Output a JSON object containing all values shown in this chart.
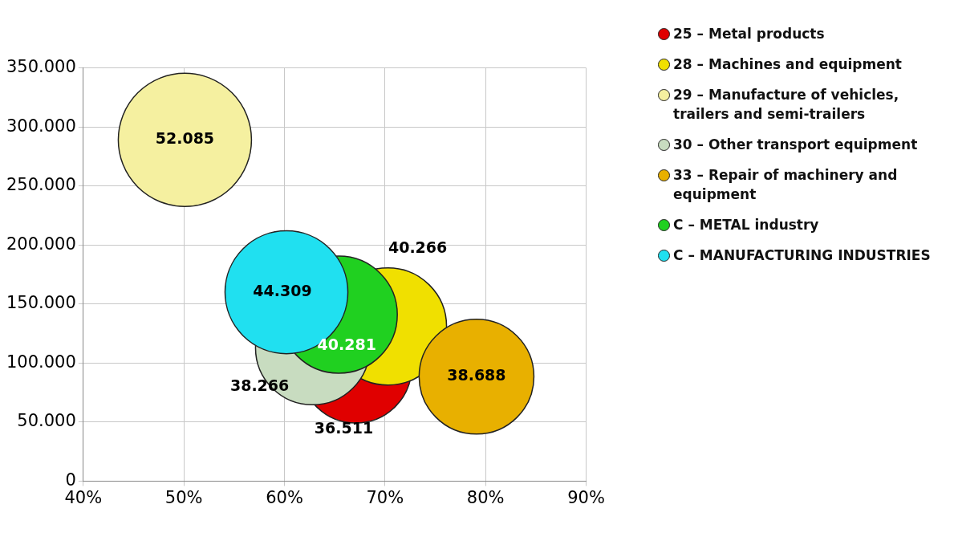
{
  "chart_data": {
    "type": "bubble",
    "legend": "right",
    "grid": true,
    "marker": "circle",
    "xlim": [
      0.4,
      0.9
    ],
    "xticks": [
      {
        "value": 0.4,
        "label": "40%"
      },
      {
        "value": 0.5,
        "label": "50%"
      },
      {
        "value": 0.6,
        "label": "60%"
      },
      {
        "value": 0.7,
        "label": "70%"
      },
      {
        "value": 0.8,
        "label": "80%"
      },
      {
        "value": 0.9,
        "label": "90%"
      }
    ],
    "ylim": [
      0,
      350000
    ],
    "yticks": [
      {
        "value": 0,
        "label": "0"
      },
      {
        "value": 50000,
        "label": "50.000"
      },
      {
        "value": 100000,
        "label": "100.000"
      },
      {
        "value": 150000,
        "label": "150.000"
      },
      {
        "value": 200000,
        "label": "200.000"
      },
      {
        "value": 250000,
        "label": "250.000"
      },
      {
        "value": 300000,
        "label": "300.000"
      },
      {
        "value": 350000,
        "label": "350.000"
      }
    ],
    "series": [
      {
        "name": "25 – Metal products",
        "color": "#e00000",
        "x": [
          0.671
        ],
        "values": [
          96500
        ],
        "sizes": [
          36511
        ],
        "value_labels": [
          "36.511"
        ]
      },
      {
        "name": "28 – Machines and equipment",
        "color": "#f0e000",
        "x": [
          0.703
        ],
        "values": [
          131000
        ],
        "sizes": [
          40266
        ],
        "value_labels": [
          "40.266"
        ]
      },
      {
        "name": "29 – Manufacture of vehicles, trailers and semi-trailers",
        "color": "#f5f0a0",
        "x": [
          0.501
        ],
        "values": [
          289000
        ],
        "sizes": [
          52085
        ],
        "value_labels": [
          "52.085"
        ]
      },
      {
        "name": "30 – Other transport equipment",
        "color": "#c8dcc0",
        "x": [
          0.628
        ],
        "values": [
          113000
        ],
        "sizes": [
          38266
        ],
        "value_labels": [
          "38.266"
        ]
      },
      {
        "name": "33 – Repair of machinery and equipment",
        "color": "#e8b000",
        "x": [
          0.791
        ],
        "values": [
          88500
        ],
        "sizes": [
          38688
        ],
        "value_labels": [
          "38.688"
        ]
      },
      {
        "name": "C – METAL industry",
        "color": "#20d020",
        "x": [
          0.654
        ],
        "values": [
          141000
        ],
        "sizes": [
          40281
        ],
        "value_labels": [
          "40.281"
        ]
      },
      {
        "name": "C – MANUFACTURING INDUSTRIES",
        "color": "#20e0f0",
        "x": [
          0.602
        ],
        "values": [
          160000
        ],
        "sizes": [
          44309
        ],
        "value_labels": [
          "44.309"
        ]
      }
    ]
  }
}
